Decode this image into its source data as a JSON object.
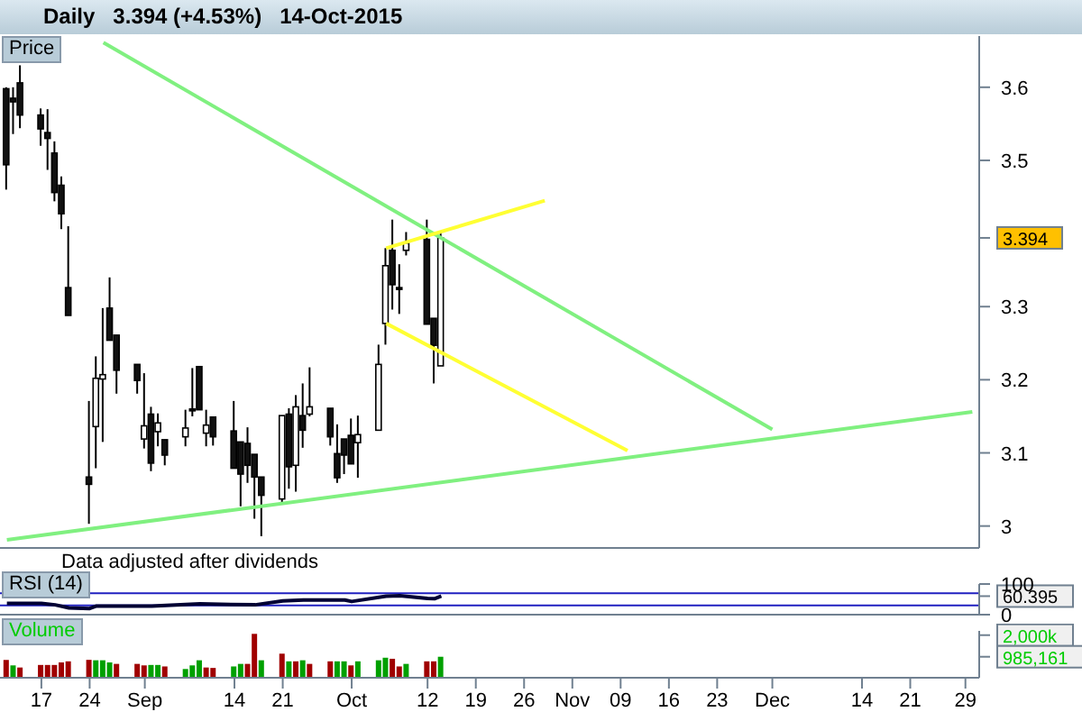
{
  "chart_data": [
    {
      "type": "candlestick",
      "title": "Daily   3.394 (+4.53%)   14-Oct-2015",
      "ylabel": "Price",
      "x": [
        "2015-08-12",
        "2015-08-13",
        "2015-08-14",
        "2015-08-17",
        "2015-08-18",
        "2015-08-19",
        "2015-08-20",
        "2015-08-21",
        "2015-08-24",
        "2015-08-25",
        "2015-08-26",
        "2015-08-27",
        "2015-08-28",
        "2015-08-31",
        "2015-09-01",
        "2015-09-02",
        "2015-09-03",
        "2015-09-04",
        "2015-09-07",
        "2015-09-08",
        "2015-09-09",
        "2015-09-10",
        "2015-09-11",
        "2015-09-14",
        "2015-09-15",
        "2015-09-16",
        "2015-09-17",
        "2015-09-18",
        "2015-09-21",
        "2015-09-22",
        "2015-09-23",
        "2015-09-24",
        "2015-09-25",
        "2015-09-28",
        "2015-09-29",
        "2015-09-30",
        "2015-10-01",
        "2015-10-02",
        "2015-10-05",
        "2015-10-06",
        "2015-10-07",
        "2015-10-08",
        "2015-10-09",
        "2015-10-12",
        "2015-10-13",
        "2015-10-14"
      ],
      "ohlc": [
        [
          3.598,
          3.6,
          3.46,
          3.494
        ],
        [
          3.585,
          3.6,
          3.536,
          3.58
        ],
        [
          3.606,
          3.63,
          3.544,
          3.562
        ],
        [
          3.562,
          3.571,
          3.52,
          3.543
        ],
        [
          3.538,
          3.57,
          3.487,
          3.53
        ],
        [
          3.51,
          3.526,
          3.444,
          3.456
        ],
        [
          3.466,
          3.478,
          3.406,
          3.427
        ],
        [
          3.326,
          3.41,
          3.288,
          3.288
        ],
        [
          3.067,
          3.171,
          3.003,
          3.057
        ],
        [
          3.136,
          3.232,
          3.079,
          3.202
        ],
        [
          3.201,
          3.298,
          3.115,
          3.207
        ],
        [
          3.298,
          3.34,
          3.254,
          3.254
        ],
        [
          3.261,
          3.261,
          3.181,
          3.213
        ],
        [
          3.221,
          3.221,
          3.181,
          3.199
        ],
        [
          3.119,
          3.209,
          3.106,
          3.137
        ],
        [
          3.153,
          3.163,
          3.075,
          3.086
        ],
        [
          3.129,
          3.154,
          3.109,
          3.141
        ],
        [
          3.118,
          3.118,
          3.083,
          3.097
        ],
        [
          3.122,
          3.159,
          3.109,
          3.134
        ],
        [
          3.16,
          3.216,
          3.15,
          3.159
        ],
        [
          3.218,
          3.218,
          3.159,
          3.159
        ],
        [
          3.127,
          3.159,
          3.109,
          3.138
        ],
        [
          3.149,
          3.149,
          3.11,
          3.122
        ],
        [
          3.13,
          3.171,
          3.079,
          3.079
        ],
        [
          3.115,
          3.115,
          3.027,
          3.071
        ],
        [
          3.113,
          3.135,
          3.059,
          3.083
        ],
        [
          3.098,
          3.098,
          3.01,
          3.067
        ],
        [
          3.067,
          3.067,
          2.986,
          3.042
        ],
        [
          3.037,
          3.151,
          3.03,
          3.151
        ],
        [
          3.153,
          3.161,
          3.051,
          3.081
        ],
        [
          3.083,
          3.179,
          3.047,
          3.163
        ],
        [
          3.151,
          3.195,
          3.107,
          3.131
        ],
        [
          3.153,
          3.217,
          3.15,
          3.163
        ],
        [
          3.161,
          3.161,
          3.11,
          3.122
        ],
        [
          3.099,
          3.139,
          3.059,
          3.066
        ],
        [
          3.119,
          3.119,
          3.071,
          3.097
        ],
        [
          3.124,
          3.147,
          3.085,
          3.085
        ],
        [
          3.114,
          3.151,
          3.066,
          3.125
        ],
        [
          3.131,
          3.248,
          3.131,
          3.221
        ],
        [
          3.277,
          3.38,
          3.248,
          3.356
        ],
        [
          3.377,
          3.419,
          3.296,
          3.33
        ],
        [
          3.326,
          3.358,
          3.29,
          3.324
        ],
        [
          3.377,
          3.402,
          3.37,
          3.387
        ],
        [
          3.392,
          3.419,
          3.276,
          3.276
        ],
        [
          3.284,
          3.284,
          3.195,
          3.247
        ],
        [
          3.219,
          3.4,
          3.219,
          3.394
        ]
      ],
      "series": [
        {
          "type": "line",
          "color": "#80f080",
          "x": [
            "2015-08-26",
            "2015-12-01"
          ],
          "values": [
            3.661,
            3.132
          ]
        },
        {
          "type": "line",
          "color": "#80f080",
          "x": [
            "2015-08-12",
            "2015-12-30"
          ],
          "values": [
            2.981,
            3.156
          ]
        },
        {
          "type": "line",
          "color": "#ffff33",
          "x": [
            "2015-10-06",
            "2015-10-29"
          ],
          "values": [
            3.38,
            3.445
          ]
        },
        {
          "type": "line",
          "color": "#ffff33",
          "x": [
            "2015-10-06",
            "2015-11-10"
          ],
          "values": [
            3.277,
            3.103
          ]
        }
      ],
      "xlim": [
        "2015-08-11",
        "2015-12-31"
      ],
      "ylim": [
        2.97,
        3.67
      ],
      "yticks": [
        3,
        3.1,
        3.2,
        3.3,
        {
          "value": 3.394,
          "label": "3.394"
        },
        3.5,
        3.6
      ],
      "tick_labels": "y",
      "annotations": [
        "Data adjusted after dividends"
      ]
    },
    {
      "type": "line",
      "legend": "top left",
      "series": [
        {
          "name": "RSI (14)",
          "color": "#000033",
          "x": [
            "2015-08-12",
            "2015-08-17",
            "2015-08-19",
            "2015-08-21",
            "2015-08-24",
            "2015-08-25",
            "2015-09-02",
            "2015-09-09",
            "2015-09-17",
            "2015-09-21",
            "2015-09-24",
            "2015-09-30",
            "2015-10-01",
            "2015-10-06",
            "2015-10-08",
            "2015-10-12",
            "2015-10-13",
            "2015-10-14"
          ],
          "values": [
            37,
            37,
            32,
            22,
            20,
            28,
            28,
            35,
            32,
            45,
            48,
            48,
            43,
            60,
            62,
            53,
            52,
            60.395
          ]
        }
      ],
      "ref_lines": [
        {
          "axis": "y",
          "value": 70,
          "color": "#2020c0"
        },
        {
          "axis": "y",
          "value": 30,
          "color": "#2020c0"
        }
      ],
      "xlim": [
        "2015-08-11",
        "2015-12-31"
      ],
      "ylim": [
        0,
        100
      ],
      "yticks": [
        0,
        {
          "value": 60.395,
          "label": "60.395"
        },
        100
      ],
      "tick_labels": "y"
    },
    {
      "type": "bar",
      "legend": "top left",
      "series": [
        {
          "name": "Volume",
          "color": "#00cc00",
          "x": [
            "2015-08-12",
            "2015-08-13",
            "2015-08-14",
            "2015-08-17",
            "2015-08-18",
            "2015-08-19",
            "2015-08-20",
            "2015-08-21",
            "2015-08-24",
            "2015-08-25",
            "2015-08-26",
            "2015-08-27",
            "2015-08-28",
            "2015-08-31",
            "2015-09-01",
            "2015-09-02",
            "2015-09-03",
            "2015-09-04",
            "2015-09-07",
            "2015-09-08",
            "2015-09-09",
            "2015-09-10",
            "2015-09-11",
            "2015-09-14",
            "2015-09-15",
            "2015-09-16",
            "2015-09-17",
            "2015-09-18",
            "2015-09-21",
            "2015-09-22",
            "2015-09-23",
            "2015-09-24",
            "2015-09-25",
            "2015-09-28",
            "2015-09-29",
            "2015-09-30",
            "2015-10-01",
            "2015-10-02",
            "2015-10-05",
            "2015-10-06",
            "2015-10-07",
            "2015-10-08",
            "2015-10-09",
            "2015-10-12",
            "2015-10-13",
            "2015-10-14"
          ],
          "values": [
            840000,
            580000,
            480000,
            600000,
            600000,
            600000,
            720000,
            770000,
            840000,
            820000,
            820000,
            720000,
            650000,
            650000,
            580000,
            600000,
            600000,
            530000,
            410000,
            580000,
            820000,
            480000,
            460000,
            530000,
            650000,
            650000,
            2060000,
            820000,
            1130000,
            770000,
            770000,
            820000,
            650000,
            770000,
            770000,
            770000,
            580000,
            770000,
            820000,
            940000,
            890000,
            530000,
            650000,
            770000,
            770000,
            985161
          ],
          "colors": [
            "#a00000",
            "#00a000",
            "#a00000",
            "#a00000",
            "#a00000",
            "#a00000",
            "#a00000",
            "#a00000",
            "#a00000",
            "#00a000",
            "#00a000",
            "#00a000",
            "#a00000",
            "#a00000",
            "#a00000",
            "#00a000",
            "#00a000",
            "#a00000",
            "#00a000",
            "#00a000",
            "#00a000",
            "#a00000",
            "#a00000",
            "#00a000",
            "#00a000",
            "#a00000",
            "#a00000",
            "#00a000",
            "#a00000",
            "#00a000",
            "#a00000",
            "#00a000",
            "#a00000",
            "#a00000",
            "#00a000",
            "#00a000",
            "#a00000",
            "#00a000",
            "#00a000",
            "#00a000",
            "#a00000",
            "#a00000",
            "#00a000",
            "#a00000",
            "#a00000",
            "#00a000"
          ]
        }
      ],
      "xlim": [
        "2015-08-11",
        "2015-12-31"
      ],
      "ylim": [
        0,
        2200000
      ],
      "yticks": [
        {
          "value": 2000000,
          "label": "2,000k"
        },
        {
          "value": 985161,
          "label": "985,161"
        }
      ],
      "xticks": [
        {
          "value": "2015-08-17",
          "label": "17"
        },
        {
          "value": "2015-08-24",
          "label": "24"
        },
        {
          "value": "2015-09-01",
          "label": "Sep"
        },
        {
          "value": "2015-09-14",
          "label": "14"
        },
        {
          "value": "2015-09-21",
          "label": "21"
        },
        {
          "value": "2015-10-01",
          "label": "Oct"
        },
        {
          "value": "2015-10-12",
          "label": "12"
        },
        {
          "value": "2015-10-19",
          "label": "19"
        },
        {
          "value": "2015-10-26",
          "label": "26"
        },
        {
          "value": "2015-11-02",
          "label": "Nov"
        },
        {
          "value": "2015-11-09",
          "label": "09"
        },
        {
          "value": "2015-11-16",
          "label": "16"
        },
        {
          "value": "2015-11-23",
          "label": "23"
        },
        {
          "value": "2015-12-01",
          "label": "Dec"
        },
        {
          "value": "2015-12-14",
          "label": "14"
        },
        {
          "value": "2015-12-21",
          "label": "21"
        },
        {
          "value": "2015-12-29",
          "label": "29"
        }
      ]
    }
  ]
}
